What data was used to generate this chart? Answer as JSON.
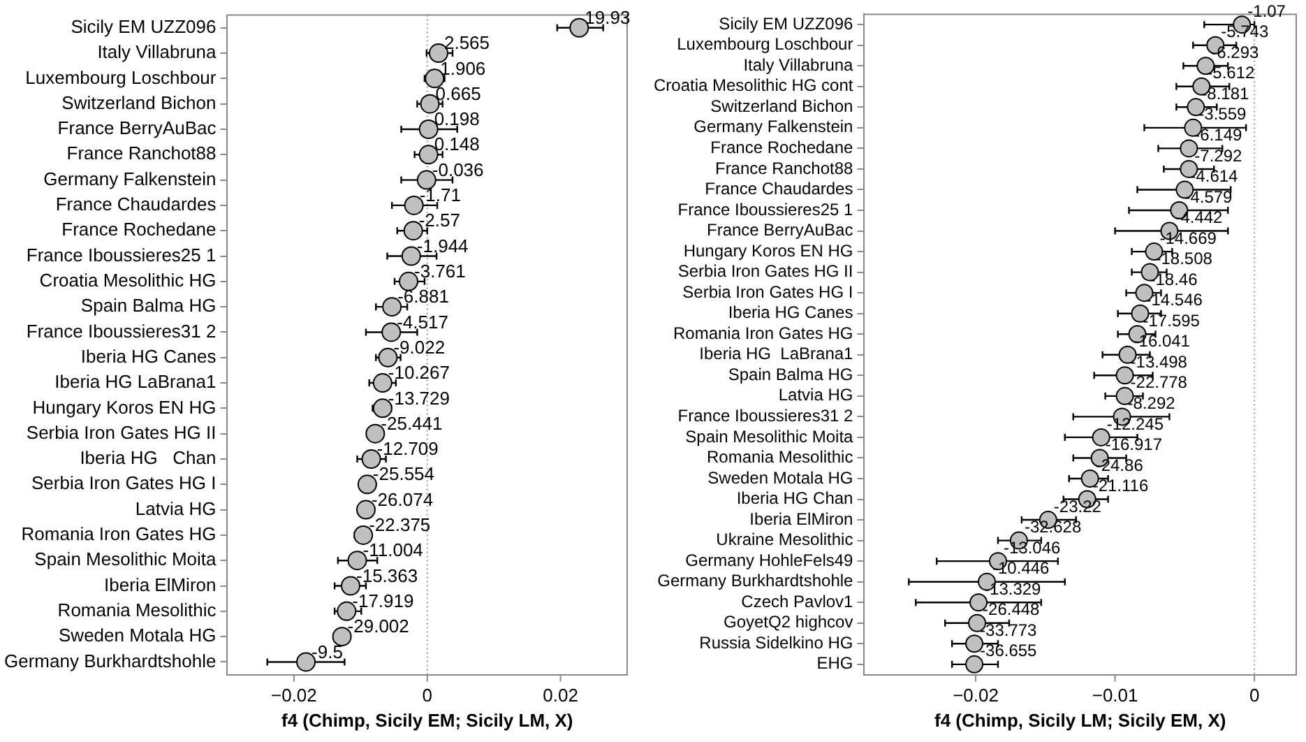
{
  "chart_data": [
    {
      "type": "scatter",
      "orientation": "horizontal",
      "marker": "circle",
      "xlabel": "f4 (Chimp, Sicily EM; Sicily LM, X)",
      "categories": [
        "Sicily EM UZZ096",
        "Italy Villabruna",
        "Luxembourg Loschbour",
        "Switzerland Bichon",
        "France BerryAuBac",
        "France Ranchot88",
        "Germany Falkenstein",
        "France Chaudardes",
        "France Rochedane",
        "France Iboussieres25 1",
        "Croatia Mesolithic HG",
        "Spain Balma HG",
        "France Iboussieres31 2",
        "Iberia HG Canes",
        "Iberia HG LaBrana1",
        "Hungary Koros EN HG",
        "Serbia Iron Gates HG II",
        "Iberia HG   Chan",
        "Serbia Iron Gates HG I",
        "Latvia HG",
        "Romania Iron Gates HG",
        "Spain Mesolithic Moita",
        "Iberia ElMiron",
        "Romania Mesolithic",
        "Sweden Motala HG",
        "Germany Burkhardtshohle"
      ],
      "series": [
        {
          "color": "#c0c0c0",
          "values": [
            0.0228,
            0.0017,
            0.0011,
            0.0004,
            0.0002,
            0.0002,
            -0.0001,
            -0.002,
            -0.0021,
            -0.0024,
            -0.0028,
            -0.0053,
            -0.0054,
            -0.0059,
            -0.0067,
            -0.0067,
            -0.0078,
            -0.0084,
            -0.009,
            -0.0092,
            -0.0096,
            -0.0105,
            -0.0115,
            -0.0121,
            -0.0128,
            -0.0182
          ],
          "errors": [
            [
              0.0195,
              0.0264
            ],
            [
              -0.0001,
              0.0038
            ],
            [
              -0.0004,
              0.0026
            ],
            [
              -0.0015,
              0.0023
            ],
            [
              -0.0039,
              0.0045
            ],
            [
              -0.0019,
              0.0023
            ],
            [
              -0.0039,
              0.0038
            ],
            [
              -0.0053,
              0.0015
            ],
            [
              -0.0045,
              0.0
            ],
            [
              -0.006,
              0.0014
            ],
            [
              -0.0049,
              -0.0004
            ],
            [
              -0.0077,
              -0.003
            ],
            [
              -0.0092,
              -0.0015
            ],
            [
              -0.0077,
              -0.004
            ],
            [
              -0.0087,
              -0.0047
            ],
            [
              -0.0082,
              -0.0054
            ],
            [
              -0.0087,
              -0.0067
            ],
            [
              -0.0105,
              -0.0062
            ],
            [
              -0.0099,
              -0.0081
            ],
            [
              -0.0101,
              -0.0083
            ],
            [
              -0.0109,
              -0.0084
            ],
            [
              -0.0134,
              -0.0075
            ],
            [
              -0.0139,
              -0.0092
            ],
            [
              -0.0139,
              -0.0099
            ],
            [
              -0.0139,
              -0.0117
            ],
            [
              -0.024,
              -0.0124
            ]
          ]
        }
      ],
      "annotations": [
        {
          "text": "19.93",
          "x": 0.0228,
          "y": "Sicily EM UZZ096"
        },
        {
          "text": "2.565",
          "x": 0.0017,
          "y": "Italy Villabruna"
        },
        {
          "text": "1.906",
          "x": 0.0011,
          "y": "Luxembourg Loschbour"
        },
        {
          "text": "0.665",
          "x": 0.0004,
          "y": "Switzerland Bichon"
        },
        {
          "text": "0.198",
          "x": 0.0002,
          "y": "France BerryAuBac"
        },
        {
          "text": "0.148",
          "x": 0.0002,
          "y": "France Ranchot88"
        },
        {
          "text": "-0.036",
          "x": -0.0001,
          "y": "Germany Falkenstein"
        },
        {
          "text": "-1.71",
          "x": -0.002,
          "y": "France Chaudardes"
        },
        {
          "text": "-2.57",
          "x": -0.0021,
          "y": "France Rochedane"
        },
        {
          "text": "-1.944",
          "x": -0.0024,
          "y": "France Iboussieres25 1"
        },
        {
          "text": "-3.761",
          "x": -0.0028,
          "y": "Croatia Mesolithic HG"
        },
        {
          "text": "-6.881",
          "x": -0.0053,
          "y": "Spain Balma HG"
        },
        {
          "text": "-4.517",
          "x": -0.0054,
          "y": "France Iboussieres31 2"
        },
        {
          "text": "-9.022",
          "x": -0.0059,
          "y": "Iberia HG Canes"
        },
        {
          "text": "-10.267",
          "x": -0.0067,
          "y": "Iberia HG LaBrana1"
        },
        {
          "text": "-13.729",
          "x": -0.0067,
          "y": "Hungary Koros EN HG"
        },
        {
          "text": "-25.441",
          "x": -0.0078,
          "y": "Serbia Iron Gates HG II"
        },
        {
          "text": "-12.709",
          "x": -0.0084,
          "y": "Iberia HG   Chan"
        },
        {
          "text": "-25.554",
          "x": -0.009,
          "y": "Serbia Iron Gates HG I"
        },
        {
          "text": "-26.074",
          "x": -0.0092,
          "y": "Latvia HG"
        },
        {
          "text": "-22.375",
          "x": -0.0096,
          "y": "Romania Iron Gates HG"
        },
        {
          "text": "-11.004",
          "x": -0.0105,
          "y": "Spain Mesolithic Moita"
        },
        {
          "text": "-15.363",
          "x": -0.0115,
          "y": "Iberia ElMiron"
        },
        {
          "text": "-17.919",
          "x": -0.0121,
          "y": "Romania Mesolithic"
        },
        {
          "text": "-29.002",
          "x": -0.0128,
          "y": "Sweden Motala HG"
        },
        {
          "text": "-9.5",
          "x": -0.0182,
          "y": "Germany Burkhardtshohle"
        }
      ],
      "xlim": [
        -0.03,
        0.03
      ],
      "xticks": [
        {
          "value": -0.02,
          "label": "−0.02"
        },
        {
          "value": 0,
          "label": "0"
        },
        {
          "value": 0.02,
          "label": "0.02"
        }
      ],
      "ref_lines": [
        {
          "axis": "x",
          "value": 0,
          "line_style": "dotted"
        }
      ]
    },
    {
      "type": "scatter",
      "orientation": "horizontal",
      "marker": "circle",
      "xlabel": "f4 (Chimp, Sicily LM; Sicily EM, X)",
      "categories": [
        "Sicily EM UZZ096",
        "Luxembourg Loschbour",
        "Italy Villabruna",
        "Croatia Mesolithic HG cont",
        "Switzerland Bichon",
        "Germany Falkenstein",
        "France Rochedane",
        "France Ranchot88",
        "France Chaudardes",
        "France Iboussieres25 1",
        "France BerryAuBac",
        "Hungary Koros EN HG",
        "Serbia Iron Gates HG II",
        "Serbia Iron Gates HG I",
        "Iberia HG Canes",
        "Romania Iron Gates HG",
        "Iberia HG  LaBrana1",
        "Spain Balma HG",
        "Latvia HG",
        "France Iboussieres31 2",
        "Spain Mesolithic Moita",
        "Romania Mesolithic",
        "Sweden Motala HG",
        "Iberia HG Chan",
        "Iberia ElMiron",
        "Ukraine Mesolithic",
        "Germany HohleFels49",
        "Germany Burkhardtshohle",
        "Czech Pavlov1",
        "GoyetQ2 highcov",
        "Russia Sidelkino HG",
        "EHG"
      ],
      "series": [
        {
          "color": "#c0c0c0",
          "values": [
            -0.0009,
            -0.0028,
            -0.0035,
            -0.0038,
            -0.0042,
            -0.0044,
            -0.0047,
            -0.0047,
            -0.005,
            -0.0054,
            -0.0061,
            -0.0072,
            -0.0075,
            -0.0079,
            -0.0082,
            -0.0084,
            -0.0091,
            -0.0093,
            -0.0093,
            -0.0095,
            -0.011,
            -0.0111,
            -0.0118,
            -0.012,
            -0.0148,
            -0.0169,
            -0.0184,
            -0.0192,
            -0.0198,
            -0.0199,
            -0.0201,
            -0.0201
          ],
          "errors": [
            [
              -0.0036,
              0.0
            ],
            [
              -0.0044,
              -0.0013
            ],
            [
              -0.0051,
              -0.0019
            ],
            [
              -0.0056,
              -0.0018
            ],
            [
              -0.0056,
              -0.0027
            ],
            [
              -0.0079,
              -0.0006
            ],
            [
              -0.0069,
              -0.0023
            ],
            [
              -0.0065,
              -0.0029
            ],
            [
              -0.0084,
              -0.0017
            ],
            [
              -0.009,
              -0.0019
            ],
            [
              -0.01,
              -0.0019
            ],
            [
              -0.0088,
              -0.0059
            ],
            [
              -0.0088,
              -0.0063
            ],
            [
              -0.0092,
              -0.0067
            ],
            [
              -0.0098,
              -0.0067
            ],
            [
              -0.0098,
              -0.0071
            ],
            [
              -0.0109,
              -0.0075
            ],
            [
              -0.0115,
              -0.0073
            ],
            [
              -0.0107,
              -0.008
            ],
            [
              -0.013,
              -0.0061
            ],
            [
              -0.0136,
              -0.0084
            ],
            [
              -0.013,
              -0.0092
            ],
            [
              -0.0133,
              -0.0105
            ],
            [
              -0.0137,
              -0.0105
            ],
            [
              -0.0167,
              -0.0128
            ],
            [
              -0.0184,
              -0.0153
            ],
            [
              -0.0228,
              -0.0141
            ],
            [
              -0.0248,
              -0.0136
            ],
            [
              -0.0243,
              -0.0153
            ],
            [
              -0.0222,
              -0.0176
            ],
            [
              -0.0217,
              -0.0184
            ],
            [
              -0.0217,
              -0.0184
            ]
          ]
        }
      ],
      "annotations": [
        {
          "text": "-1.07",
          "x": -0.0009,
          "y": "Sicily EM UZZ096"
        },
        {
          "text": "-5.743",
          "x": -0.0028,
          "y": "Luxembourg Loschbour"
        },
        {
          "text": "-6.293",
          "x": -0.0035,
          "y": "Italy Villabruna"
        },
        {
          "text": "-5.612",
          "x": -0.0038,
          "y": "Croatia Mesolithic HG cont"
        },
        {
          "text": "-8.181",
          "x": -0.0042,
          "y": "Switzerland Bichon"
        },
        {
          "text": "-3.559",
          "x": -0.0044,
          "y": "Germany Falkenstein"
        },
        {
          "text": "-6.149",
          "x": -0.0047,
          "y": "France Rochedane"
        },
        {
          "text": "-7.292",
          "x": -0.0047,
          "y": "France Ranchot88"
        },
        {
          "text": "-4.614",
          "x": -0.005,
          "y": "France Chaudardes"
        },
        {
          "text": "-4.579",
          "x": -0.0054,
          "y": "France Iboussieres25 1"
        },
        {
          "text": "-4.442",
          "x": -0.0061,
          "y": "France BerryAuBac"
        },
        {
          "text": "-14.669",
          "x": -0.0072,
          "y": "Hungary Koros EN HG"
        },
        {
          "text": "-18.508",
          "x": -0.0075,
          "y": "Serbia Iron Gates HG II"
        },
        {
          "text": "-18.46",
          "x": -0.0079,
          "y": "Serbia Iron Gates HG I"
        },
        {
          "text": "-14.546",
          "x": -0.0082,
          "y": "Iberia HG Canes"
        },
        {
          "text": "-17.595",
          "x": -0.0084,
          "y": "Romania Iron Gates HG"
        },
        {
          "text": "-16.041",
          "x": -0.0091,
          "y": "Iberia HG  LaBrana1"
        },
        {
          "text": "-13.498",
          "x": -0.0093,
          "y": "Spain Balma HG"
        },
        {
          "text": "-22.778",
          "x": -0.0093,
          "y": "Latvia HG"
        },
        {
          "text": "-8.292",
          "x": -0.0095,
          "y": "France Iboussieres31 2"
        },
        {
          "text": "-12.245",
          "x": -0.011,
          "y": "Spain Mesolithic Moita"
        },
        {
          "text": "-16.917",
          "x": -0.0111,
          "y": "Romania Mesolithic"
        },
        {
          "text": "-24.86",
          "x": -0.0118,
          "y": "Sweden Motala HG"
        },
        {
          "text": "-21.116",
          "x": -0.012,
          "y": "Iberia HG Chan"
        },
        {
          "text": "-23.22",
          "x": -0.0148,
          "y": "Iberia ElMiron"
        },
        {
          "text": "-32.628",
          "x": -0.0169,
          "y": "Ukraine Mesolithic"
        },
        {
          "text": "-13.046",
          "x": -0.0184,
          "y": "Germany HohleFels49"
        },
        {
          "text": "-10.446",
          "x": -0.0192,
          "y": "Germany Burkhardtshohle"
        },
        {
          "text": "-13.329",
          "x": -0.0198,
          "y": "Czech Pavlov1"
        },
        {
          "text": "-26.448",
          "x": -0.0199,
          "y": "GoyetQ2 highcov"
        },
        {
          "text": "-33.773",
          "x": -0.0201,
          "y": "Russia Sidelkino HG"
        },
        {
          "text": "-36.655",
          "x": -0.0201,
          "y": "EHG"
        }
      ],
      "xlim": [
        -0.028,
        0.003
      ],
      "xticks": [
        {
          "value": -0.02,
          "label": "−0.02"
        },
        {
          "value": -0.01,
          "label": "−0.01"
        },
        0
      ],
      "ref_lines": [
        {
          "axis": "x",
          "value": 0,
          "line_style": "dotted"
        }
      ]
    }
  ]
}
